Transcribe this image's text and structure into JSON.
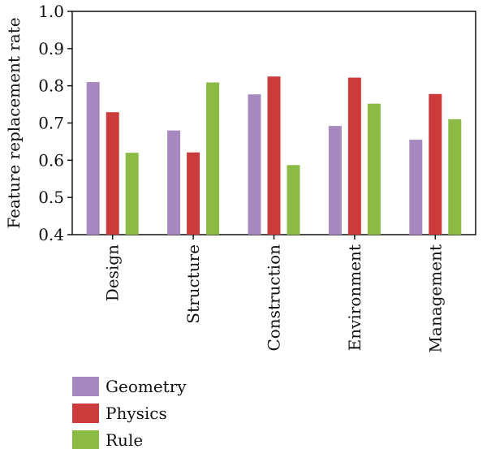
{
  "chart_data": {
    "type": "bar",
    "categories": [
      "Design",
      "Structure",
      "Construction",
      "Environment",
      "Management"
    ],
    "series": [
      {
        "name": "Geometry",
        "values": [
          0.81,
          0.68,
          0.777,
          0.692,
          0.655
        ]
      },
      {
        "name": "Physics",
        "values": [
          0.729,
          0.621,
          0.825,
          0.822,
          0.778
        ]
      },
      {
        "name": "Rule",
        "values": [
          0.62,
          0.809,
          0.587,
          0.752,
          0.71
        ]
      }
    ],
    "ylabel": "Feature replacement rate",
    "xlabel": "",
    "ylim": [
      0.4,
      1.0
    ],
    "yticks": [
      "0.4",
      "0.5",
      "0.6",
      "0.7",
      "0.8",
      "0.9",
      "1.0"
    ],
    "grid": false,
    "legend_position": "bottom-left",
    "colors": {
      "Geometry": "#a789bf",
      "Physics": "#cc3b3b",
      "Rule": "#8cbb45"
    }
  }
}
